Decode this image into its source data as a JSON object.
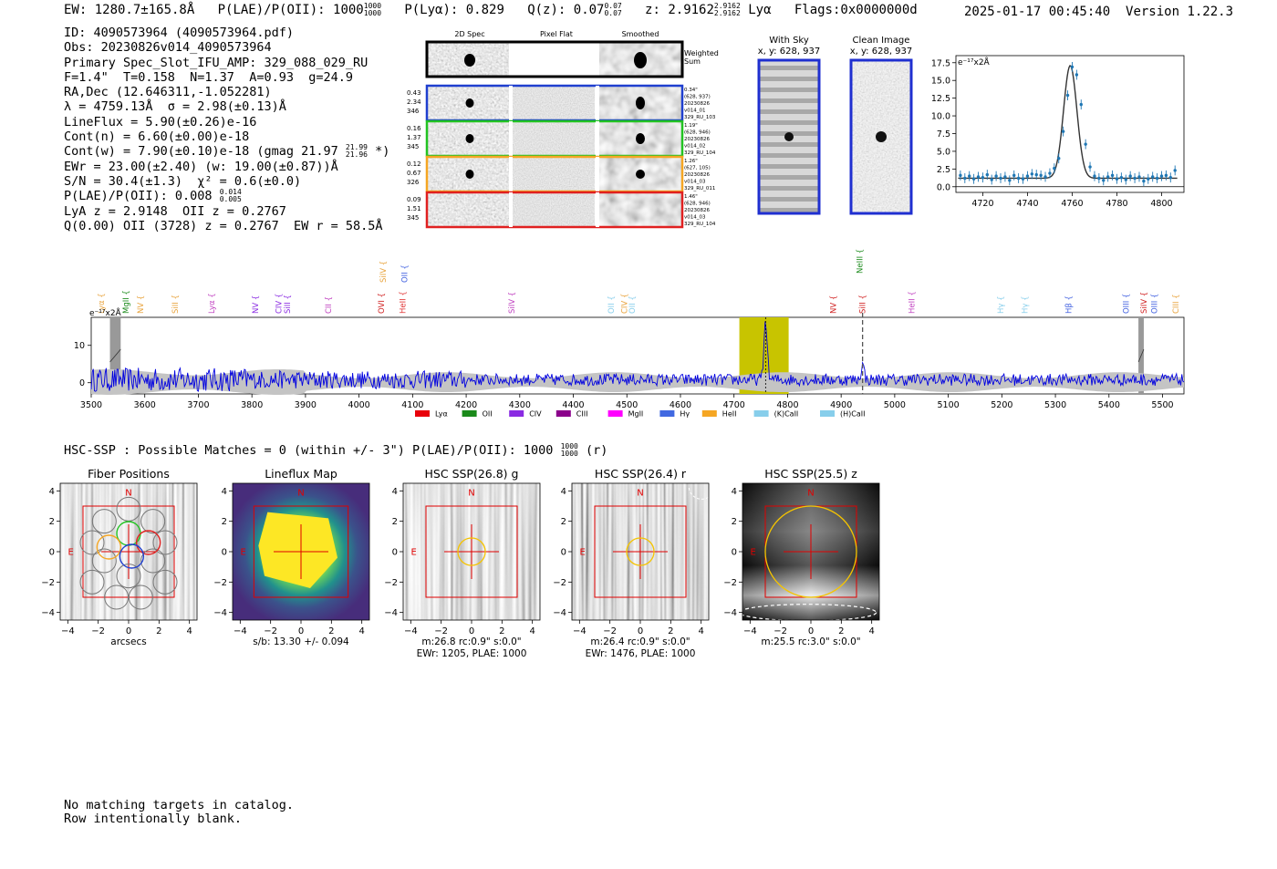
{
  "header": {
    "ew": "EW: 1280.7±165.8Å",
    "plae": "P(LAE)/P(OII): 1000",
    "plae_hi": "1000",
    "plae_lo": "1000",
    "plya": "P(Lyα): 0.829",
    "qz": "Q(z): 0.07",
    "qz_hi": "0.07",
    "qz_lo": "0.07",
    "z": "z: 2.9162",
    "z_hi": "2.9162",
    "z_lo": "2.9162",
    "line": "Lyα",
    "flags": "Flags:0x0000000d",
    "datetime": "2025-01-17 00:45:40",
    "version": "Version 1.22.3"
  },
  "info": {
    "id": "ID: 4090573964 (4090573964.pdf)",
    "obs": "Obs: 20230826v014_4090573964",
    "primary": "Primary Spec_Slot_IFU_AMP: 329_088_029_RU",
    "fwhm": "F=1.4\"  T=0.158  N=1.37  A=0.93  g=24.9",
    "radec": "RA,Dec (12.646311,-1.052281)",
    "lambda": "λ = 4759.13Å  σ = 2.98(±0.13)Å",
    "lineflux": "LineFlux = 5.90(±0.26)e-16",
    "contn": "Cont(n) = 6.60(±0.00)e-18",
    "contw": "Cont(w) = 7.90(±0.10)e-18 (gmag 21.97",
    "contw_hi": "21.99",
    "contw_lo": "21.96",
    "contw_end": " *)",
    "ewr": "EWr = 23.00(±2.40) (w: 19.00(±0.87))Å",
    "sn": "S/N = 30.4(±1.3)  χ² = 0.6(±0.0)",
    "plae": "P(LAE)/P(OII): 0.008",
    "plae_hi": "0.014",
    "plae_lo": "0.005",
    "lya": "LyA z = 2.9148  OII z = 0.2767",
    "q": "Q(0.00) OII (3728) z = 0.2767  EW r = 58.5Å"
  },
  "cutouts": {
    "headers": [
      "2D Spec",
      "Pixel Flat",
      "Smoothed"
    ],
    "weighted": [
      "Weighted",
      "Sum"
    ],
    "rows": [
      {
        "left": [
          "0.43",
          "2.34",
          "346"
        ],
        "right": [
          "0.34\"",
          "(628, 937)",
          "20230826",
          "v014_01",
          "329_RU_103"
        ],
        "color": "#1f3fcf"
      },
      {
        "left": [
          "0.16",
          "1.37",
          "345"
        ],
        "right": [
          "1.19\"",
          "(628, 946)",
          "20230826",
          "v014_02",
          "329_RU_104"
        ],
        "color": "#22c322"
      },
      {
        "left": [
          "0.12",
          "0.67",
          "326"
        ],
        "right": [
          "1.26\"",
          "(627, 105)",
          "20230826",
          "v014_03",
          "329_RU_011"
        ],
        "color": "#f5a623"
      },
      {
        "left": [
          "0.09",
          "1.51",
          "345"
        ],
        "right": [
          "1.46\"",
          "(628, 946)",
          "20230826",
          "v014_03",
          "329_RU_104"
        ],
        "color": "#e02020"
      }
    ]
  },
  "sky": {
    "with_sky": "With Sky",
    "with_sky_xy": "x, y: 628, 937",
    "clean": "Clean Image",
    "clean_xy": "x, y: 628, 937"
  },
  "chart_data": [
    {
      "type": "scatter",
      "title": "",
      "unit_label": "e⁻¹⁷x2Å",
      "xlim": [
        4708,
        4810
      ],
      "ylim": [
        -0.8,
        18.5
      ],
      "xticks": [
        4720,
        4740,
        4760,
        4780,
        4800
      ],
      "yticks": [
        0.0,
        2.5,
        5.0,
        7.5,
        10.0,
        12.5,
        15.0,
        17.5
      ],
      "x": [
        4710,
        4712,
        4714,
        4716,
        4718,
        4720,
        4722,
        4724,
        4726,
        4728,
        4730,
        4732,
        4734,
        4736,
        4738,
        4740,
        4742,
        4744,
        4746,
        4748,
        4750,
        4752,
        4754,
        4756,
        4758,
        4760,
        4762,
        4764,
        4766,
        4768,
        4770,
        4772,
        4774,
        4776,
        4778,
        4780,
        4782,
        4784,
        4786,
        4788,
        4790,
        4792,
        4794,
        4796,
        4798,
        4800,
        4802,
        4804,
        4806
      ],
      "y": [
        1.6,
        1.2,
        1.5,
        1.1,
        1.4,
        1.3,
        1.7,
        1.0,
        1.5,
        1.2,
        1.4,
        0.9,
        1.6,
        1.2,
        1.1,
        1.5,
        1.8,
        1.7,
        1.6,
        1.4,
        1.9,
        2.6,
        4.0,
        7.8,
        12.9,
        16.9,
        15.8,
        11.6,
        6.0,
        2.8,
        1.5,
        1.2,
        0.9,
        1.4,
        1.6,
        1.1,
        1.3,
        1.0,
        1.5,
        1.2,
        1.4,
        0.8,
        1.1,
        1.4,
        1.2,
        1.5,
        1.6,
        1.3,
        2.3
      ],
      "fit_center": 4759.13,
      "fit_sigma": 2.98,
      "fit_amp": 15.9,
      "fit_base": 1.2
    },
    {
      "type": "line",
      "title": "",
      "unit_label": "e⁻¹⁷x2Å",
      "xlim": [
        3500,
        5540
      ],
      "ylim": [
        -3,
        17.5
      ],
      "xticks": [
        3500,
        3600,
        3700,
        3800,
        3900,
        4000,
        4100,
        4200,
        4300,
        4400,
        4500,
        4600,
        4700,
        4800,
        4900,
        5000,
        5100,
        5200,
        5300,
        5400,
        5500
      ],
      "yticks": [
        0,
        10
      ],
      "highlight_range": [
        4710,
        4802
      ],
      "line_center": 4759,
      "dashed_line": 4940,
      "masked_ranges": [
        [
          3535,
          3555
        ],
        [
          5455,
          5465
        ]
      ],
      "emission_labels": [
        {
          "label": "Lyα",
          "x": 3524,
          "color": "#e8a33c",
          "tier": 0
        },
        {
          "label": "MgII",
          "x": 3570,
          "color": "#1a8a1a",
          "tier": 0
        },
        {
          "label": "NV",
          "x": 3597,
          "color": "#e8a33c",
          "tier": 0
        },
        {
          "label": "SiII",
          "x": 3662,
          "color": "#e8a33c",
          "tier": 0
        },
        {
          "label": "Lyα",
          "x": 3730,
          "color": "#c040c0",
          "tier": 0
        },
        {
          "label": "NV",
          "x": 3812,
          "color": "#8a2be2",
          "tier": 0
        },
        {
          "label": "CIV",
          "x": 3855,
          "color": "#8a2be2",
          "tier": 0
        },
        {
          "label": "SiII",
          "x": 3871,
          "color": "#8a2be2",
          "tier": 0
        },
        {
          "label": "CII",
          "x": 3948,
          "color": "#c040c0",
          "tier": 0
        },
        {
          "label": "OVI",
          "x": 4047,
          "color": "#d02020",
          "tier": 0
        },
        {
          "label": "HeII",
          "x": 4087,
          "color": "#e03030",
          "tier": 0
        },
        {
          "label": "SiIV",
          "x": 4050,
          "color": "#e8a33c",
          "tier": 1
        },
        {
          "label": "OII",
          "x": 4090,
          "color": "#4060e0",
          "tier": 1
        },
        {
          "label": "SiIV",
          "x": 4290,
          "color": "#c040c0",
          "tier": 0
        },
        {
          "label": "OII",
          "x": 4476,
          "color": "#87ceeb",
          "tier": 0
        },
        {
          "label": "CIV",
          "x": 4500,
          "color": "#e8a33c",
          "tier": 0
        },
        {
          "label": "OII",
          "x": 4515,
          "color": "#87ceeb",
          "tier": 0
        },
        {
          "label": "NV",
          "x": 4890,
          "color": "#d02020",
          "tier": 0
        },
        {
          "label": "NeIII",
          "x": 4940,
          "color": "#1a8a1a",
          "tier": 2
        },
        {
          "label": "SiII",
          "x": 4945,
          "color": "#d02020",
          "tier": 0
        },
        {
          "label": "HeII",
          "x": 5037,
          "color": "#c040c0",
          "tier": 0
        },
        {
          "label": "Hγ",
          "x": 5203,
          "color": "#87ceeb",
          "tier": 0
        },
        {
          "label": "Hγ",
          "x": 5248,
          "color": "#87ceeb",
          "tier": 0
        },
        {
          "label": "Hβ",
          "x": 5330,
          "color": "#4060e0",
          "tier": 0
        },
        {
          "label": "OIII",
          "x": 5437,
          "color": "#4060e0",
          "tier": 0
        },
        {
          "label": "SiIV",
          "x": 5470,
          "color": "#d02020",
          "tier": 0
        },
        {
          "label": "OIII",
          "x": 5490,
          "color": "#4060e0",
          "tier": 0
        },
        {
          "label": "CIII",
          "x": 5530,
          "color": "#e8a33c",
          "tier": 0
        }
      ],
      "legend": [
        {
          "label": "Lyα",
          "color": "#e8000b"
        },
        {
          "label": "OII",
          "color": "#1a8a1a"
        },
        {
          "label": "CIV",
          "color": "#8a2be2"
        },
        {
          "label": "CIII",
          "color": "#8b008b"
        },
        {
          "label": "MgII",
          "color": "#ff00ff"
        },
        {
          "label": "Hγ",
          "color": "#4169e1"
        },
        {
          "label": "HeII",
          "color": "#f5a623"
        },
        {
          "label": "(K)CaII",
          "color": "#87ceeb"
        },
        {
          "label": "(H)CaII",
          "color": "#87ceeb"
        }
      ]
    }
  ],
  "hsc": {
    "line": "HSC-SSP : Possible Matches = 0 (within +/- 3\")  P(LAE)/P(OII): 1000",
    "line_hi": "1000",
    "line_lo": "1000",
    "line_end": " (r)",
    "panels": [
      {
        "title": "Fiber Positions",
        "caption1": "arcsecs",
        "caption2": "",
        "style": "fiber"
      },
      {
        "title": "Lineflux Map",
        "caption1": "s/b: 13.30 +/- 0.094",
        "caption2": "",
        "style": "lineflux"
      },
      {
        "title": "HSC SSP(26.8) g",
        "caption1": "m:26.8 rc:0.9\"  s:0.0\"",
        "caption2": "EWr: 1205, PLAE: 1000",
        "style": "gstrip"
      },
      {
        "title": "HSC SSP(26.4) r",
        "caption1": "m:26.4 rc:0.9\"  s:0.0\"",
        "caption2": "EWr: 1476, PLAE: 1000",
        "style": "rstrip"
      },
      {
        "title": "HSC SSP(25.5) z",
        "caption1": "m:25.5 rc:3.0\"  s:0.0\"",
        "caption2": "",
        "style": "zband"
      }
    ],
    "ticks": [
      -4,
      -2,
      0,
      2,
      4
    ],
    "compass_n": "N",
    "compass_e": "E"
  },
  "footer": {
    "line1": "No matching targets in catalog.",
    "line2": "Row intentionally blank."
  }
}
